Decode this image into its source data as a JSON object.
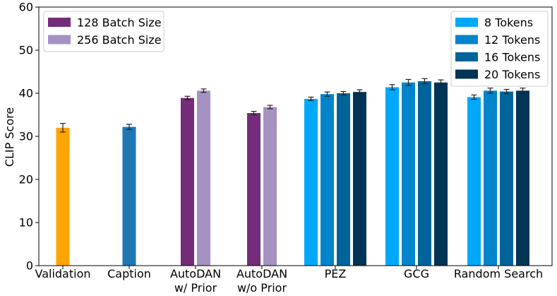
{
  "chart_data": {
    "type": "bar",
    "title": "",
    "xlabel": "",
    "ylabel": "CLIP Score",
    "ylim": [
      0,
      60
    ],
    "yticks": [
      "0",
      "10",
      "20",
      "30",
      "40",
      "50",
      "60"
    ],
    "grid": false,
    "groups": [
      {
        "name": "Validation",
        "label_lines": [
          "Validation"
        ],
        "bars": [
          {
            "series": "Validation",
            "value": 32.0,
            "err": 1.0,
            "color": "#ffa500"
          }
        ]
      },
      {
        "name": "Caption",
        "label_lines": [
          "Caption"
        ],
        "bars": [
          {
            "series": "Caption",
            "value": 32.2,
            "err": 0.6,
            "color": "#1f77b4"
          }
        ]
      },
      {
        "name": "AutoDAN w/ Prior",
        "label_lines": [
          "AutoDAN",
          "w/ Prior"
        ],
        "bars": [
          {
            "series": "128 Batch Size",
            "value": 38.9,
            "err": 0.4,
            "color": "#742c78"
          },
          {
            "series": "256 Batch Size",
            "value": 40.6,
            "err": 0.4,
            "color": "#a592c2"
          }
        ]
      },
      {
        "name": "AutoDAN w/o Prior",
        "label_lines": [
          "AutoDAN",
          "w/o Prior"
        ],
        "bars": [
          {
            "series": "128 Batch Size",
            "value": 35.4,
            "err": 0.4,
            "color": "#742c78"
          },
          {
            "series": "256 Batch Size",
            "value": 36.8,
            "err": 0.4,
            "color": "#a592c2"
          }
        ]
      },
      {
        "name": "PEZ",
        "label_lines": [
          "PEZ"
        ],
        "bars": [
          {
            "series": "8 Tokens",
            "value": 38.7,
            "err": 0.4,
            "color": "#00a8fa"
          },
          {
            "series": "12 Tokens",
            "value": 39.8,
            "err": 0.5,
            "color": "#0084cc"
          },
          {
            "series": "16 Tokens",
            "value": 40.0,
            "err": 0.4,
            "color": "#00649a"
          },
          {
            "series": "20 Tokens",
            "value": 40.3,
            "err": 0.5,
            "color": "#013455"
          }
        ]
      },
      {
        "name": "GCG",
        "label_lines": [
          "GCG"
        ],
        "bars": [
          {
            "series": "8 Tokens",
            "value": 41.4,
            "err": 0.6,
            "color": "#00a8fa"
          },
          {
            "series": "12 Tokens",
            "value": 42.5,
            "err": 0.7,
            "color": "#0084cc"
          },
          {
            "series": "16 Tokens",
            "value": 42.8,
            "err": 0.6,
            "color": "#00649a"
          },
          {
            "series": "20 Tokens",
            "value": 42.5,
            "err": 0.6,
            "color": "#013455"
          }
        ]
      },
      {
        "name": "Random Search",
        "label_lines": [
          "Random Search"
        ],
        "bars": [
          {
            "series": "8 Tokens",
            "value": 39.1,
            "err": 0.5,
            "color": "#00a8fa"
          },
          {
            "series": "12 Tokens",
            "value": 40.6,
            "err": 0.6,
            "color": "#0084cc"
          },
          {
            "series": "16 Tokens",
            "value": 40.4,
            "err": 0.5,
            "color": "#00649a"
          },
          {
            "series": "20 Tokens",
            "value": 40.6,
            "err": 0.6,
            "color": "#013455"
          }
        ]
      }
    ],
    "legends": [
      {
        "position": "top-left",
        "entries": [
          {
            "label": "128 Batch Size",
            "color": "#742c78"
          },
          {
            "label": "256 Batch Size",
            "color": "#a592c2"
          }
        ]
      },
      {
        "position": "top-right",
        "entries": [
          {
            "label": "8 Tokens",
            "color": "#00a8fa"
          },
          {
            "label": "12 Tokens",
            "color": "#0084cc"
          },
          {
            "label": "16 Tokens",
            "color": "#00649a"
          },
          {
            "label": "20 Tokens",
            "color": "#013455"
          }
        ]
      }
    ]
  }
}
